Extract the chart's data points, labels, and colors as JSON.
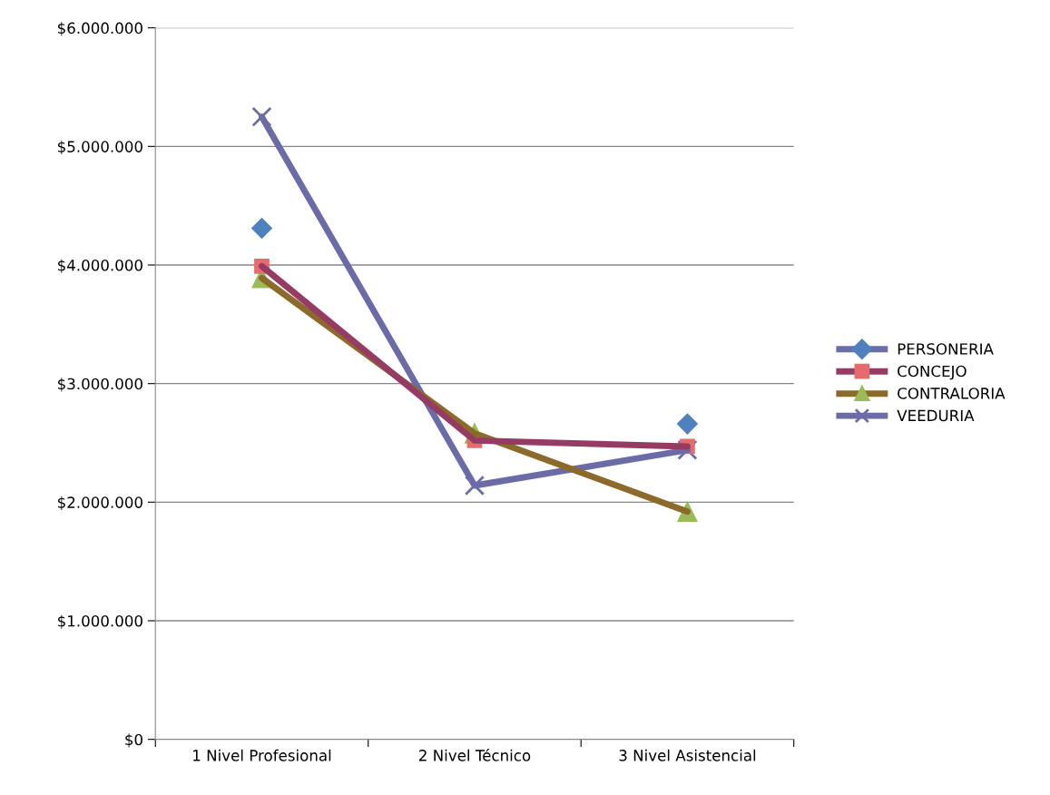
{
  "chart_data": {
    "type": "line",
    "categories": [
      "1 Nivel Profesional",
      "2 Nivel Técnico",
      "3 Nivel Asistencial"
    ],
    "series": [
      {
        "name": "PERSONERIA",
        "color": "#6a6ea8",
        "colors": [
          "#4f81bd",
          "#4f81bd",
          "#4f81bd"
        ],
        "marker": "diamond",
        "values": [
          4310000,
          null,
          2660000
        ]
      },
      {
        "name": "CONCEJO",
        "color": "#963c64",
        "colors": [
          "#e46c6c",
          "#e46c6c",
          "#e46c6c"
        ],
        "marker": "square",
        "values": [
          3990000,
          2520000,
          2470000
        ]
      },
      {
        "name": "CONTRALORIA",
        "color": "#8c6a2a",
        "colors": [
          "#9bbb59",
          "#9bbb59",
          "#9bbb59"
        ],
        "marker": "triangle",
        "values": [
          3890000,
          2580000,
          1920000
        ]
      },
      {
        "name": "VEEDURIA",
        "color": "#6b6ba8",
        "colors": [
          "#6b6ba8",
          "#6b6ba8",
          "#6b6ba8"
        ],
        "marker": "cross",
        "values": [
          5250000,
          2140000,
          2440000
        ]
      }
    ],
    "ylim": [
      0,
      6000000
    ],
    "yticks": [
      {
        "value": 0,
        "label": "$0"
      },
      {
        "value": 1000000,
        "label": "$1.000.000"
      },
      {
        "value": 2000000,
        "label": "$2.000.000"
      },
      {
        "value": 3000000,
        "label": "$3.000.000"
      },
      {
        "value": 4000000,
        "label": "$4.000.000"
      },
      {
        "value": 5000000,
        "label": "$5.000.000"
      },
      {
        "value": 6000000,
        "label": "$6.000.000"
      }
    ],
    "grid": "y",
    "legend": "right"
  }
}
